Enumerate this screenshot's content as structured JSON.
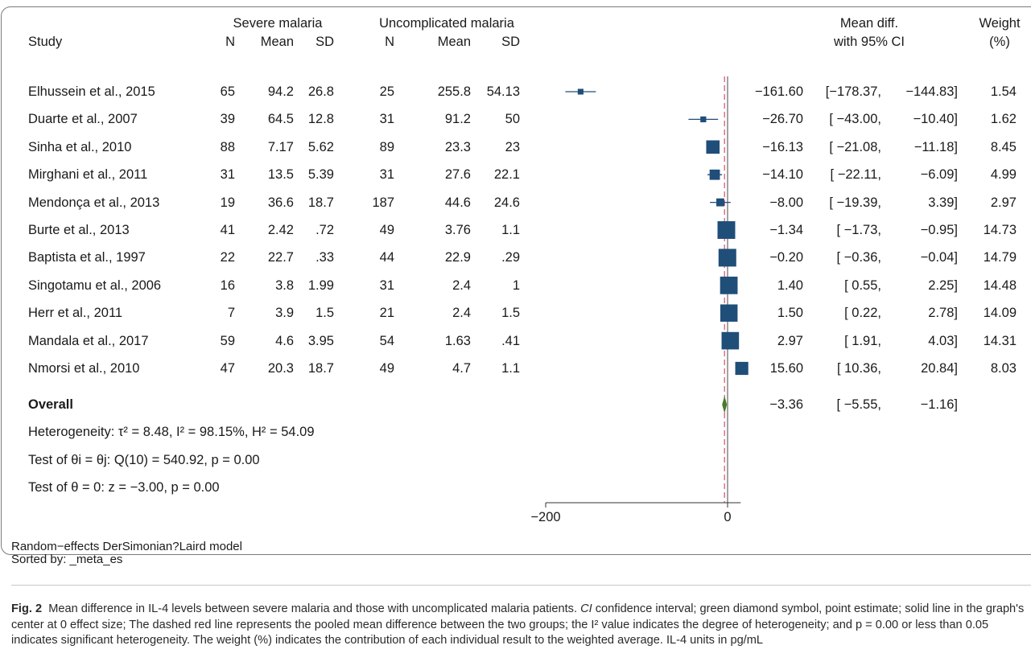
{
  "chart_data": {
    "type": "forest",
    "headers": {
      "study": "Study",
      "group1": "Severe malaria",
      "group2": "Uncomplicated malaria",
      "n": "N",
      "mean": "Mean",
      "sd": "SD",
      "effect_line1": "Mean diff.",
      "effect_line2": "with 95% CI",
      "weight_line1": "Weight",
      "weight_line2": "(%)"
    },
    "studies": [
      {
        "study": "Elhussein et al., 2015",
        "n1": "65",
        "mean1": "94.2",
        "sd1": "26.8",
        "n2": "25",
        "mean2": "255.8",
        "sd2": "54.13",
        "es": -161.6,
        "lo": -178.37,
        "hi": -144.83,
        "es_text": "−161.60",
        "lo_text": "[−178.37,",
        "hi_text": "−144.83]",
        "weight": "1.54",
        "w": 1.54
      },
      {
        "study": "Duarte et al., 2007",
        "n1": "39",
        "mean1": "64.5",
        "sd1": "12.8",
        "n2": "31",
        "mean2": "91.2",
        "sd2": "50",
        "es": -26.7,
        "lo": -43.0,
        "hi": -10.4,
        "es_text": "−26.70",
        "lo_text": "[ −43.00,",
        "hi_text": "−10.40]",
        "weight": "1.62",
        "w": 1.62
      },
      {
        "study": "Sinha et al., 2010",
        "n1": "88",
        "mean1": "7.17",
        "sd1": "5.62",
        "n2": "89",
        "mean2": "23.3",
        "sd2": "23",
        "es": -16.13,
        "lo": -21.08,
        "hi": -11.18,
        "es_text": "−16.13",
        "lo_text": "[ −21.08,",
        "hi_text": "−11.18]",
        "weight": "8.45",
        "w": 8.45
      },
      {
        "study": "Mirghani et al., 2011",
        "n1": "31",
        "mean1": "13.5",
        "sd1": "5.39",
        "n2": "31",
        "mean2": "27.6",
        "sd2": "22.1",
        "es": -14.1,
        "lo": -22.11,
        "hi": -6.09,
        "es_text": "−14.10",
        "lo_text": "[ −22.11,",
        "hi_text": "−6.09]",
        "weight": "4.99",
        "w": 4.99
      },
      {
        "study": "Mendonça et al., 2013",
        "n1": "19",
        "mean1": "36.6",
        "sd1": "18.7",
        "n2": "187",
        "mean2": "44.6",
        "sd2": "24.6",
        "es": -8.0,
        "lo": -19.39,
        "hi": 3.39,
        "es_text": "−8.00",
        "lo_text": "[ −19.39,",
        "hi_text": "3.39]",
        "weight": "2.97",
        "w": 2.97
      },
      {
        "study": "Burte et al., 2013",
        "n1": "41",
        "mean1": "2.42",
        "sd1": ".72",
        "n2": "49",
        "mean2": "3.76",
        "sd2": "1.1",
        "es": -1.34,
        "lo": -1.73,
        "hi": -0.95,
        "es_text": "−1.34",
        "lo_text": "[ −1.73,",
        "hi_text": "−0.95]",
        "weight": "14.73",
        "w": 14.73
      },
      {
        "study": "Baptista et al., 1997",
        "n1": "22",
        "mean1": "22.7",
        "sd1": ".33",
        "n2": "44",
        "mean2": "22.9",
        "sd2": ".29",
        "es": -0.2,
        "lo": -0.36,
        "hi": -0.04,
        "es_text": "−0.20",
        "lo_text": "[ −0.36,",
        "hi_text": "−0.04]",
        "weight": "14.79",
        "w": 14.79
      },
      {
        "study": "Singotamu et al., 2006",
        "n1": "16",
        "mean1": "3.8",
        "sd1": "1.99",
        "n2": "31",
        "mean2": "2.4",
        "sd2": "1",
        "es": 1.4,
        "lo": 0.55,
        "hi": 2.25,
        "es_text": "1.40",
        "lo_text": "[ 0.55,",
        "hi_text": "2.25]",
        "weight": "14.48",
        "w": 14.48
      },
      {
        "study": "Herr et al., 2011",
        "n1": "7",
        "mean1": "3.9",
        "sd1": "1.5",
        "n2": "21",
        "mean2": "2.4",
        "sd2": "1.5",
        "es": 1.5,
        "lo": 0.22,
        "hi": 2.78,
        "es_text": "1.50",
        "lo_text": "[ 0.22,",
        "hi_text": "2.78]",
        "weight": "14.09",
        "w": 14.09
      },
      {
        "study": "Mandala et al., 2017",
        "n1": "59",
        "mean1": "4.6",
        "sd1": "3.95",
        "n2": "54",
        "mean2": "1.63",
        "sd2": ".41",
        "es": 2.97,
        "lo": 1.91,
        "hi": 4.03,
        "es_text": "2.97",
        "lo_text": "[ 1.91,",
        "hi_text": "4.03]",
        "weight": "14.31",
        "w": 14.31
      },
      {
        "study": "Nmorsi et al., 2010",
        "n1": "47",
        "mean1": "20.3",
        "sd1": "18.7",
        "n2": "49",
        "mean2": "4.7",
        "sd2": "1.1",
        "es": 15.6,
        "lo": 10.36,
        "hi": 20.84,
        "es_text": "15.60",
        "lo_text": "[ 10.36,",
        "hi_text": "20.84]",
        "weight": "8.03",
        "w": 8.03
      }
    ],
    "overall": {
      "label": "Overall",
      "es": -3.36,
      "lo": -5.55,
      "hi": -1.16,
      "es_text": "−3.36",
      "lo_text": "[ −5.55,",
      "hi_text": "−1.16]"
    },
    "stats": {
      "heterogeneity": "Heterogeneity: τ² = 8.48, I² = 98.15%, H² = 54.09",
      "test_homogeneity": "Test of θi = θj: Q(10) = 540.92, p = 0.00",
      "test_zero": "Test of θ = 0: z = −3.00, p = 0.00"
    },
    "x_ticks": [
      {
        "value": -200,
        "label": "−200"
      },
      {
        "value": 0,
        "label": "0"
      }
    ],
    "xlim": [
      -200,
      10
    ],
    "colors": {
      "marker": "#1f4e79",
      "diamond": "#4a7a2a",
      "null_line": "#666666",
      "pooled_line": "#d4506b"
    },
    "notes": [
      "Random−effects DerSimonian?Laird model",
      "Sorted by: _meta_es"
    ]
  },
  "caption": {
    "label": "Fig. 2",
    "text_before_ci": "Mean difference in IL-4 levels between severe malaria and those with uncomplicated malaria patients. ",
    "ci_abbrev": "CI",
    "text_after_ci": " confidence interval; green diamond symbol, point estimate; solid line in the graph's center at 0 effect size; The dashed red line represents the pooled mean difference between the two groups; the I² value indicates the degree of heterogeneity; and p = 0.00 or less than 0.05 indicates significant heterogeneity. The weight (%) indicates the contribution of each individual result to the weighted average. IL-4 units in pg/mL"
  }
}
